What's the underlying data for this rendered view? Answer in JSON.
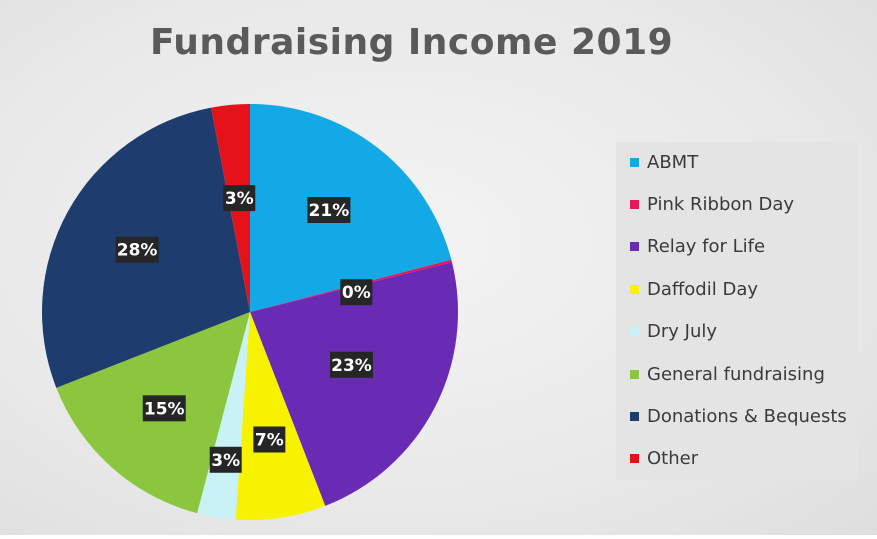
{
  "chart_data": {
    "type": "pie",
    "title": "Fundraising Income 2019",
    "legend_position": "right",
    "slices": [
      {
        "label": "ABMT",
        "value": 21,
        "display": "21%",
        "color": "#12a9e6"
      },
      {
        "label": "Pink Ribbon Day",
        "value": 0.2,
        "display": "0%",
        "color": "#e8175d"
      },
      {
        "label": "Relay for Life",
        "value": 23,
        "display": "23%",
        "color": "#6a2bb4"
      },
      {
        "label": "Daffodil Day",
        "value": 7,
        "display": "7%",
        "color": "#f6f200"
      },
      {
        "label": "Dry July",
        "value": 3,
        "display": "3%",
        "color": "#c8f2f6"
      },
      {
        "label": "General fundraising",
        "value": 15,
        "display": "15%",
        "color": "#8cc63f"
      },
      {
        "label": "Donations & Bequests",
        "value": 28,
        "display": "28%",
        "color": "#1f3c6e"
      },
      {
        "label": "Other",
        "value": 3,
        "display": "3%",
        "color": "#e5121a"
      }
    ]
  }
}
